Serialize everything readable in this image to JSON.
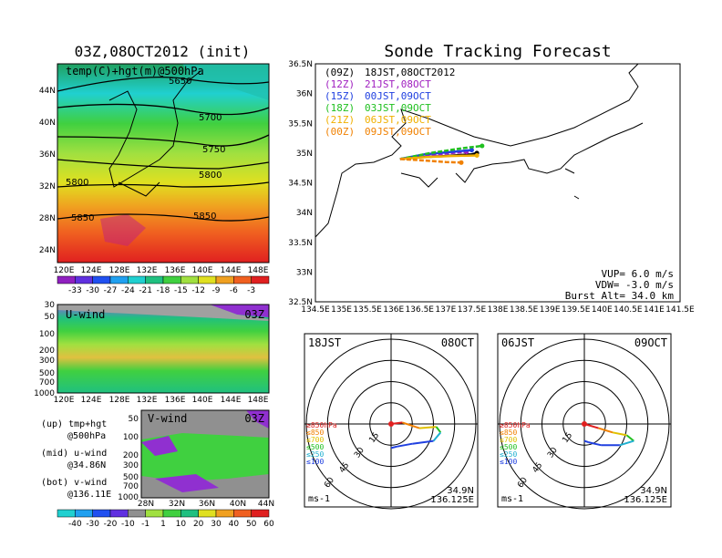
{
  "title": "Sonde Tracking Forecast",
  "init_title": "03Z,08OCT2012 (init)",
  "top_map": {
    "label": "temp(C)+hgt(m)@500hPa",
    "contours": [
      "5650",
      "5700",
      "5750",
      "5800",
      "5800",
      "5850",
      "5850"
    ],
    "lat_labels": [
      "44N",
      "40N",
      "36N",
      "32N",
      "28N",
      "24N"
    ],
    "lon_labels": [
      "120E",
      "124E",
      "128E",
      "132E",
      "136E",
      "140E",
      "144E",
      "148E"
    ],
    "colorbar": [
      "-33",
      "-30",
      "-27",
      "-24",
      "-21",
      "-18",
      "-15",
      "-12",
      "-9",
      "-6",
      "-3"
    ]
  },
  "u_panel": {
    "label": "U-wind",
    "time": "03Z",
    "levels": [
      "30",
      "50",
      "100",
      "200",
      "300",
      "500",
      "700",
      "1000"
    ],
    "lon_labels": [
      "120E",
      "124E",
      "128E",
      "132E",
      "136E",
      "140E",
      "144E",
      "148E"
    ]
  },
  "v_panel": {
    "label": "V-wind",
    "time": "03Z",
    "levels": [
      "50",
      "100",
      "200",
      "300",
      "500",
      "700",
      "1000"
    ],
    "lat_labels": [
      "28N",
      "32N",
      "36N",
      "40N",
      "44N"
    ],
    "colorbar": [
      "-40",
      "-30",
      "-20",
      "-10",
      "-1",
      "1",
      "10",
      "20",
      "30",
      "40",
      "50",
      "60"
    ]
  },
  "side_notes": [
    {
      "a": "(up)  tmp+hgt",
      "b": "@500hPa"
    },
    {
      "a": "(mid)  u-wind",
      "b": "@34.86N"
    },
    {
      "a": "(bot)  v-wind",
      "b": "@136.11E"
    }
  ],
  "track_map": {
    "lat_labels": [
      "36.5N",
      "36N",
      "35.5N",
      "35N",
      "34.5N",
      "34N",
      "33.5N",
      "33N",
      "32.5N"
    ],
    "lon_labels": [
      "134.5E",
      "135E",
      "135.5E",
      "136E",
      "136.5E",
      "137E",
      "137.5E",
      "138E",
      "138.5E",
      "139E",
      "139.5E",
      "140E",
      "140.5E",
      "141E",
      "141.5E"
    ],
    "legend": [
      {
        "run": "(09Z)",
        "valid": "18JST,08OCT2012",
        "color": "#000000"
      },
      {
        "run": "(12Z)",
        "valid": "21JST,08OCT",
        "color": "#a020c0"
      },
      {
        "run": "(15Z)",
        "valid": "00JST,09OCT",
        "color": "#2040e0"
      },
      {
        "run": "(18Z)",
        "valid": "03JST,09OCT",
        "color": "#20c020"
      },
      {
        "run": "(21Z)",
        "valid": "06JST,09OCT",
        "color": "#f0b000"
      },
      {
        "run": "(00Z)",
        "valid": "09JST,09OCT",
        "color": "#f08000"
      }
    ],
    "vup": "VUP= 6.0 m/s",
    "vdw": "VDW= -3.0 m/s",
    "burst": "Burst Alt= 34.0 km"
  },
  "polar_left": {
    "time": "18JST",
    "date": "08OCT",
    "rings": [
      "15",
      "30",
      "45",
      "60"
    ],
    "unit": "ms-1",
    "lat": "34.9N",
    "lon": "136.125E"
  },
  "polar_right": {
    "time": "06JST",
    "date": "09OCT",
    "rings": [
      "15",
      "30",
      "45",
      "60"
    ],
    "unit": "ms-1",
    "lat": "34.9N",
    "lon": "136.125E"
  },
  "polar_levels": [
    {
      "label": "≥850hPa",
      "color": "#e02020"
    },
    {
      "label": "≤850",
      "color": "#f08000"
    },
    {
      "label": "≤700",
      "color": "#e0c000"
    },
    {
      "label": "≤500",
      "color": "#20c020"
    },
    {
      "label": "≤250",
      "color": "#20b0d0"
    },
    {
      "label": "≤100",
      "color": "#2040e0"
    }
  ],
  "colors": {
    "tempbar": [
      "#9020c0",
      "#6030e0",
      "#2050f0",
      "#20a0f0",
      "#20d0d0",
      "#20c080",
      "#40d040",
      "#a0e040",
      "#e0e020",
      "#f0a020",
      "#f06020",
      "#e02020"
    ],
    "windbar": [
      "#20d0d0",
      "#20a0f0",
      "#2050f0",
      "#6030e0",
      "#909090",
      "#a0e040",
      "#40d040",
      "#20c080",
      "#e0e020",
      "#f0a020",
      "#f06020",
      "#e02020"
    ]
  },
  "chart_data": [
    {
      "type": "heatmap",
      "title": "03Z,08OCT2012 (init)",
      "subtitle": "temp(C)+hgt(m)@500hPa",
      "xlim": [
        120,
        150
      ],
      "ylim": [
        22,
        47
      ],
      "contour_levels": [
        5650,
        5700,
        5750,
        5800,
        5850
      ],
      "colorbar_values": [
        -33,
        -30,
        -27,
        -24,
        -21,
        -18,
        -15,
        -12,
        -9,
        -6,
        -3
      ]
    },
    {
      "type": "heatmap",
      "title": "U-wind",
      "xlim": [
        120,
        150
      ],
      "ylim": [
        1000,
        30
      ]
    },
    {
      "type": "heatmap",
      "title": "V-wind",
      "xlim": [
        28,
        44
      ],
      "ylim": [
        1000,
        30
      ],
      "colorbar_values": [
        -40,
        -30,
        -20,
        -10,
        -1,
        1,
        10,
        20,
        30,
        40,
        50,
        60
      ]
    },
    {
      "type": "line",
      "title": "Sonde Tracking Forecast",
      "xlim": [
        134.5,
        141.5
      ],
      "ylim": [
        32.5,
        36.5
      ],
      "launch": [
        136.125,
        34.9
      ],
      "series": [
        {
          "name": "(09Z) 18JST,08OCT2012",
          "x": [
            136.125,
            136.5,
            137.0,
            137.5,
            137.6
          ],
          "y": [
            34.9,
            34.93,
            34.95,
            34.98,
            35.0
          ]
        },
        {
          "name": "(12Z) 21JST,08OCT",
          "x": [
            136.125,
            136.6,
            137.1,
            137.4
          ],
          "y": [
            34.9,
            34.95,
            35.0,
            35.02
          ]
        },
        {
          "name": "(15Z) 00JST,09OCT",
          "x": [
            136.125,
            136.6,
            137.1,
            137.5
          ],
          "y": [
            34.9,
            34.98,
            35.02,
            35.05
          ]
        },
        {
          "name": "(18Z) 03JST,09OCT",
          "x": [
            136.125,
            136.7,
            137.3,
            137.7
          ],
          "y": [
            34.9,
            35.0,
            35.08,
            35.12
          ]
        },
        {
          "name": "(21Z) 06JST,09OCT",
          "x": [
            136.125,
            136.6,
            137.1,
            137.6
          ],
          "y": [
            34.9,
            34.93,
            34.95,
            34.96
          ]
        },
        {
          "name": "(00Z) 09JST,09OCT",
          "x": [
            136.125,
            136.5,
            137.0,
            137.3
          ],
          "y": [
            34.9,
            34.88,
            34.85,
            34.84
          ]
        }
      ]
    },
    {
      "type": "line",
      "title": "18JST 08OCT",
      "rmax": 60,
      "series_xy": [
        [
          0,
          0
        ],
        [
          8,
          1
        ],
        [
          20,
          -3
        ],
        [
          32,
          -2
        ],
        [
          35,
          -6
        ],
        [
          30,
          -12
        ],
        [
          15,
          -14
        ],
        [
          4,
          -16
        ],
        [
          0,
          -17
        ]
      ]
    },
    {
      "type": "line",
      "title": "06JST 09OCT",
      "rmax": 60,
      "series_xy": [
        [
          0,
          0
        ],
        [
          10,
          -3
        ],
        [
          20,
          -6
        ],
        [
          30,
          -8
        ],
        [
          35,
          -12
        ],
        [
          25,
          -15
        ],
        [
          12,
          -15
        ],
        [
          3,
          -13
        ],
        [
          0,
          -12
        ]
      ]
    }
  ]
}
